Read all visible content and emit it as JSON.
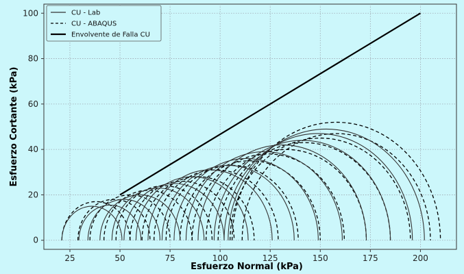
{
  "colors": {
    "background": "#ccf7fb",
    "axes_background": "#ccf7fb",
    "lab_line": "#333333",
    "abaqus_line": "#000000",
    "envelope_line": "#000000",
    "grid": "#9ea7b0"
  },
  "chart_data": {
    "type": "line",
    "title": "",
    "xlabel": "Esfuerzo Normal (kPa)",
    "ylabel": "Esfuerzo Cortante (kPa)",
    "xlim": [
      12,
      218
    ],
    "ylim": [
      -4,
      104
    ],
    "xticks": [
      25,
      50,
      75,
      100,
      125,
      150,
      175,
      200
    ],
    "yticks": [
      0,
      20,
      40,
      60,
      80,
      100
    ],
    "grid": true,
    "legend_position": "top-left",
    "series": [
      {
        "name": "CU - Lab",
        "style": "solid",
        "circles": [
          {
            "center": 36,
            "radius": 15
          },
          {
            "center": 45,
            "radius": 15.5
          },
          {
            "center": 52,
            "radius": 18
          },
          {
            "center": 60,
            "radius": 20
          },
          {
            "center": 69,
            "radius": 23
          },
          {
            "center": 77,
            "radius": 25
          },
          {
            "center": 86,
            "radius": 28
          },
          {
            "center": 95,
            "radius": 31
          },
          {
            "center": 104,
            "radius": 33
          },
          {
            "center": 113,
            "radius": 36
          },
          {
            "center": 122,
            "radius": 39
          },
          {
            "center": 131,
            "radius": 42
          },
          {
            "center": 141,
            "radius": 44
          },
          {
            "center": 149,
            "radius": 47
          },
          {
            "center": 153,
            "radius": 49
          }
        ]
      },
      {
        "name": "CU - ABAQUS",
        "style": "dashed",
        "circles": [
          {
            "center": 38,
            "radius": 17
          },
          {
            "center": 47,
            "radius": 18
          },
          {
            "center": 55,
            "radius": 20
          },
          {
            "center": 64,
            "radius": 22
          },
          {
            "center": 72,
            "radius": 24
          },
          {
            "center": 81,
            "radius": 26
          },
          {
            "center": 89,
            "radius": 28
          },
          {
            "center": 98,
            "radius": 31
          },
          {
            "center": 106,
            "radius": 33
          },
          {
            "center": 115,
            "radius": 35
          },
          {
            "center": 124,
            "radius": 38
          },
          {
            "center": 133,
            "radius": 40
          },
          {
            "center": 142,
            "radius": 43
          },
          {
            "center": 150,
            "radius": 45
          },
          {
            "center": 158,
            "radius": 47
          },
          {
            "center": 158,
            "radius": 52
          }
        ]
      },
      {
        "name": "Envolvente de Falla CU",
        "style": "thick-solid",
        "x": [
          50,
          200
        ],
        "y": [
          20,
          100
        ]
      }
    ]
  }
}
